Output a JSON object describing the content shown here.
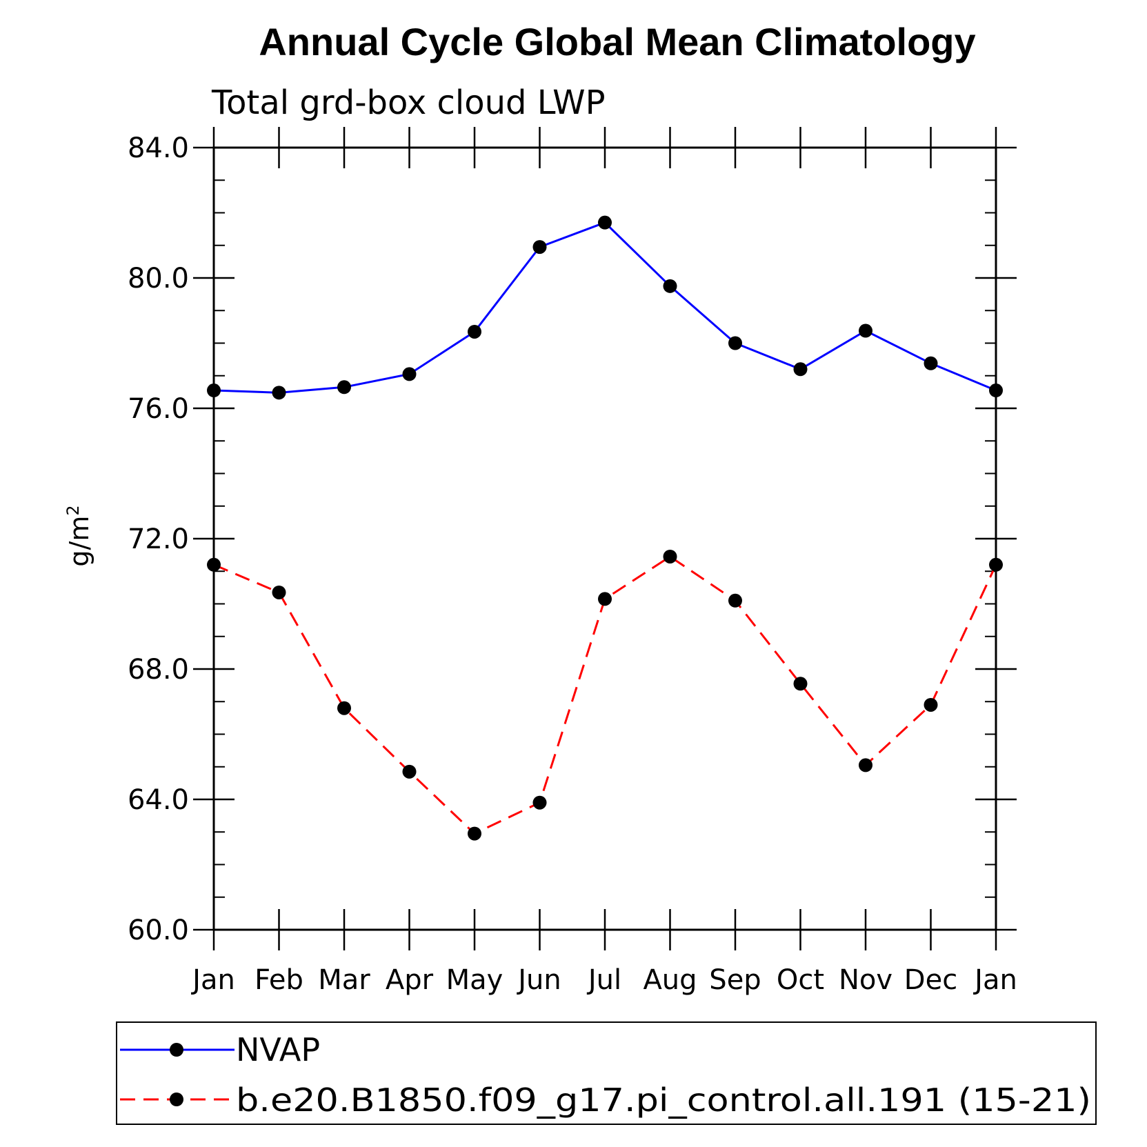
{
  "chart_data": {
    "type": "line",
    "title": "Annual Cycle Global Mean Climatology",
    "subtitle": "Total grd-box cloud LWP",
    "ylabel": "g/m",
    "ylabel_superscript": "2",
    "ylim": [
      60,
      84
    ],
    "y_major_ticks": [
      60,
      64,
      68,
      72,
      76,
      80,
      84
    ],
    "y_tick_labels": [
      "60.0",
      "64.0",
      "68.0",
      "72.0",
      "76.0",
      "80.0",
      "84.0"
    ],
    "y_minor_step": 1,
    "categories": [
      "Jan",
      "Feb",
      "Mar",
      "Apr",
      "May",
      "Jun",
      "Jul",
      "Aug",
      "Sep",
      "Oct",
      "Nov",
      "Dec",
      "Jan"
    ],
    "series": [
      {
        "name": "NVAP",
        "color": "#0000ff",
        "dash": "solid",
        "values": [
          76.55,
          76.48,
          76.65,
          77.05,
          78.35,
          80.95,
          81.7,
          79.75,
          78.0,
          77.2,
          78.38,
          77.38,
          76.55
        ]
      },
      {
        "name": "b.e20.B1850.f09_g17.pi_control.all.191 (15-21)",
        "color": "#ff0000",
        "dash": "dashed",
        "values": [
          71.2,
          70.35,
          66.8,
          64.85,
          62.95,
          63.9,
          70.15,
          71.45,
          70.1,
          67.55,
          65.05,
          66.9,
          71.2
        ]
      }
    ],
    "legend": {
      "position": "below",
      "entries": [
        "NVAP",
        "b.e20.B1850.f09_g17.pi_control.all.191 (15-21)"
      ]
    }
  }
}
